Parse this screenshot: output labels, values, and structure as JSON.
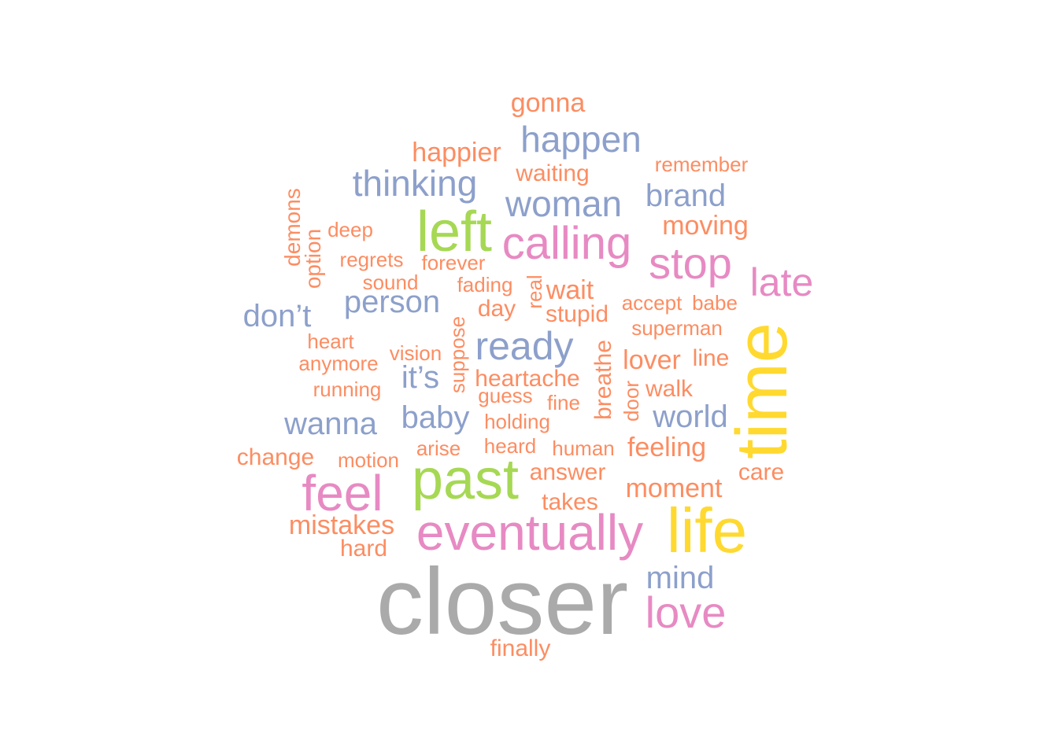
{
  "palette": {
    "grey": "#aaaaaa",
    "yellow": "#ffd92f",
    "green": "#a6d854",
    "pink": "#e78ac3",
    "blue": "#8da0cb",
    "orange": "#fc8d62"
  },
  "words": [
    {
      "text": "closer",
      "color": "grey",
      "size": 120
    },
    {
      "text": "time",
      "color": "yellow",
      "size": 92,
      "vertical": true
    },
    {
      "text": "life",
      "color": "yellow",
      "size": 80
    },
    {
      "text": "past",
      "color": "green",
      "size": 72
    },
    {
      "text": "left",
      "color": "green",
      "size": 72
    },
    {
      "text": "eventually",
      "color": "pink",
      "size": 64
    },
    {
      "text": "feel",
      "color": "pink",
      "size": 64
    },
    {
      "text": "calling",
      "color": "pink",
      "size": 58
    },
    {
      "text": "love",
      "color": "pink",
      "size": 56
    },
    {
      "text": "stop",
      "color": "pink",
      "size": 56
    },
    {
      "text": "late",
      "color": "pink",
      "size": 50
    },
    {
      "text": "ready",
      "color": "blue",
      "size": 50
    },
    {
      "text": "happen",
      "color": "blue",
      "size": 46
    },
    {
      "text": "thinking",
      "color": "blue",
      "size": 46
    },
    {
      "text": "woman",
      "color": "blue",
      "size": 46
    },
    {
      "text": "brand",
      "color": "blue",
      "size": 40
    },
    {
      "text": "don’t",
      "color": "blue",
      "size": 40
    },
    {
      "text": "person",
      "color": "blue",
      "size": 40
    },
    {
      "text": "world",
      "color": "blue",
      "size": 40
    },
    {
      "text": "baby",
      "color": "blue",
      "size": 40
    },
    {
      "text": "wanna",
      "color": "blue",
      "size": 40
    },
    {
      "text": "mind",
      "color": "blue",
      "size": 40
    },
    {
      "text": "it’s",
      "color": "blue",
      "size": 40
    },
    {
      "text": "gonna",
      "color": "orange",
      "size": 34
    },
    {
      "text": "happier",
      "color": "orange",
      "size": 34
    },
    {
      "text": "moving",
      "color": "orange",
      "size": 34
    },
    {
      "text": "wait",
      "color": "orange",
      "size": 34
    },
    {
      "text": "lover",
      "color": "orange",
      "size": 34
    },
    {
      "text": "feeling",
      "color": "orange",
      "size": 34
    },
    {
      "text": "moment",
      "color": "orange",
      "size": 34
    },
    {
      "text": "mistakes",
      "color": "orange",
      "size": 34
    },
    {
      "text": "remember",
      "color": "orange",
      "size": 26
    },
    {
      "text": "waiting",
      "color": "orange",
      "size": 30
    },
    {
      "text": "demons",
      "color": "orange",
      "size": 28,
      "vertical": true
    },
    {
      "text": "option",
      "color": "orange",
      "size": 28,
      "vertical": true
    },
    {
      "text": "deep",
      "color": "orange",
      "size": 26
    },
    {
      "text": "regrets",
      "color": "orange",
      "size": 26
    },
    {
      "text": "forever",
      "color": "orange",
      "size": 26
    },
    {
      "text": "sound",
      "color": "orange",
      "size": 26
    },
    {
      "text": "fading",
      "color": "orange",
      "size": 26
    },
    {
      "text": "real",
      "color": "orange",
      "size": 26,
      "vertical": true
    },
    {
      "text": "day",
      "color": "orange",
      "size": 30
    },
    {
      "text": "stupid",
      "color": "orange",
      "size": 30
    },
    {
      "text": "accept",
      "color": "orange",
      "size": 26
    },
    {
      "text": "babe",
      "color": "orange",
      "size": 26
    },
    {
      "text": "superman",
      "color": "orange",
      "size": 26
    },
    {
      "text": "heart",
      "color": "orange",
      "size": 26
    },
    {
      "text": "suppose",
      "color": "orange",
      "size": 26,
      "vertical": true
    },
    {
      "text": "vision",
      "color": "orange",
      "size": 26
    },
    {
      "text": "breathe",
      "color": "orange",
      "size": 30,
      "vertical": true
    },
    {
      "text": "anymore",
      "color": "orange",
      "size": 26
    },
    {
      "text": "heartache",
      "color": "orange",
      "size": 30
    },
    {
      "text": "line",
      "color": "orange",
      "size": 30
    },
    {
      "text": "running",
      "color": "orange",
      "size": 26
    },
    {
      "text": "guess",
      "color": "orange",
      "size": 26
    },
    {
      "text": "fine",
      "color": "orange",
      "size": 26
    },
    {
      "text": "walk",
      "color": "orange",
      "size": 30
    },
    {
      "text": "door",
      "color": "orange",
      "size": 26,
      "vertical": true
    },
    {
      "text": "holding",
      "color": "orange",
      "size": 26
    },
    {
      "text": "change",
      "color": "orange",
      "size": 30
    },
    {
      "text": "motion",
      "color": "orange",
      "size": 26
    },
    {
      "text": "arise",
      "color": "orange",
      "size": 26
    },
    {
      "text": "heard",
      "color": "orange",
      "size": 26
    },
    {
      "text": "human",
      "color": "orange",
      "size": 26
    },
    {
      "text": "answer",
      "color": "orange",
      "size": 30
    },
    {
      "text": "care",
      "color": "orange",
      "size": 30
    },
    {
      "text": "takes",
      "color": "orange",
      "size": 30
    },
    {
      "text": "hard",
      "color": "orange",
      "size": 30
    },
    {
      "text": "finally",
      "color": "orange",
      "size": 30
    }
  ]
}
